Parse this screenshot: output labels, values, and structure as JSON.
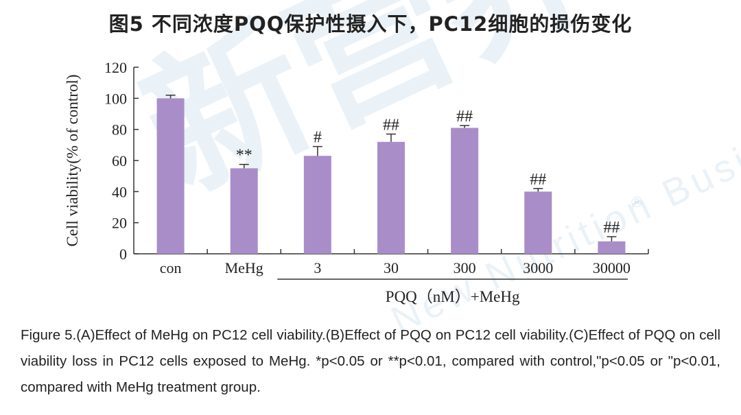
{
  "title": "图5 不同浓度PQQ保护性摄入下，PC12细胞的损伤变化",
  "chart_data": {
    "type": "bar",
    "ylabel": "Cell viability(% of control)",
    "ylim": [
      0,
      120
    ],
    "yticks": [
      0,
      20,
      40,
      60,
      80,
      100,
      120
    ],
    "categories": [
      "con",
      "MeHg",
      "3",
      "30",
      "300",
      "3000",
      "30000"
    ],
    "values": [
      100,
      55,
      63,
      72,
      81,
      40,
      8
    ],
    "errors": [
      2,
      2.5,
      6,
      5,
      1.5,
      2,
      3
    ],
    "annotations": [
      "",
      "**",
      "#",
      "##",
      "##",
      "##",
      "##"
    ],
    "group_label": "PQQ（nM）+MeHg",
    "bar_color": "#a98dc8"
  },
  "caption": "Figure 5.(A)Effect of MeHg on PC12 cell viability.(B)Effect of PQQ on PC12 cell viability.(C)Effect of PQQ on cell viability loss in PC12 cells exposed to MeHg. *p<0.05 or **p<0.01, compared with control,\"p<0.05 or \"p<0.01, compared with MeHg treatment group.",
  "watermark": {
    "main": "新营养",
    "sub": "New Nutrition Business",
    "mark": "®"
  }
}
